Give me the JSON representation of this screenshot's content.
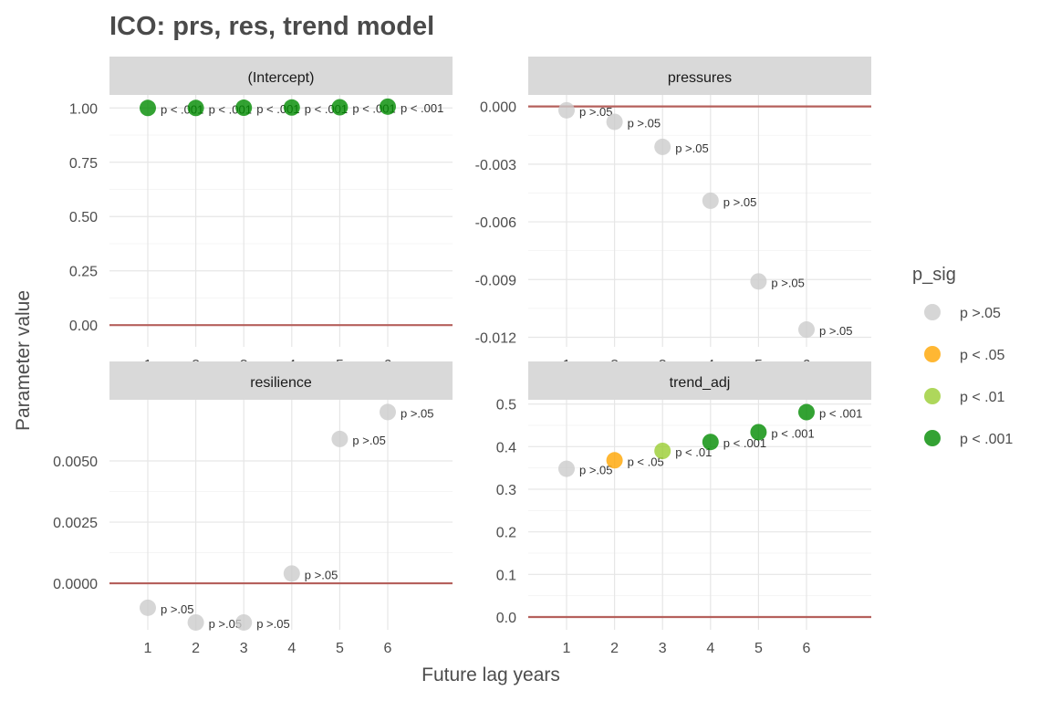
{
  "chart_data": {
    "type": "scatter",
    "title": "ICO: prs, res, trend model",
    "xlabel": "Future lag years",
    "ylabel": "Parameter value",
    "x_ticks": [
      "1",
      "2",
      "3",
      "4",
      "5",
      "6"
    ],
    "legend": {
      "title": "p_sig",
      "placement": "right",
      "items": [
        {
          "label": "p >.05",
          "color": "#cccccc"
        },
        {
          "label": "p < .05",
          "color": "#ffa500"
        },
        {
          "label": "p < .01",
          "color": "#9acd32"
        },
        {
          "label": "p < .001",
          "color": "#008b00"
        }
      ]
    },
    "reference_line": {
      "y": 0,
      "color": "#b5605c"
    },
    "grid": true,
    "panels": [
      {
        "name": "(Intercept)",
        "ylim": [
          -0.1,
          1.06
        ],
        "y_ticks": [
          {
            "v": 0,
            "t": "0.00"
          },
          {
            "v": 0.25,
            "t": "0.25"
          },
          {
            "v": 0.5,
            "t": "0.50"
          },
          {
            "v": 0.75,
            "t": "0.75"
          },
          {
            "v": 1.0,
            "t": "1.00"
          }
        ],
        "points": [
          {
            "x": 1,
            "y": 1.0,
            "sig": "p < .001"
          },
          {
            "x": 2,
            "y": 1.0,
            "sig": "p < .001"
          },
          {
            "x": 3,
            "y": 1.001,
            "sig": "p < .001"
          },
          {
            "x": 4,
            "y": 1.002,
            "sig": "p < .001"
          },
          {
            "x": 5,
            "y": 1.003,
            "sig": "p < .001"
          },
          {
            "x": 6,
            "y": 1.006,
            "sig": "p < .001"
          }
        ]
      },
      {
        "name": "pressures",
        "ylim": [
          -0.0125,
          0.0006
        ],
        "y_ticks": [
          {
            "v": -0.012,
            "t": "-0.012"
          },
          {
            "v": -0.009,
            "t": "-0.009"
          },
          {
            "v": -0.006,
            "t": "-0.006"
          },
          {
            "v": -0.003,
            "t": "-0.003"
          },
          {
            "v": 0,
            "t": "0.000"
          }
        ],
        "points": [
          {
            "x": 1,
            "y": -0.0002,
            "sig": "p >.05"
          },
          {
            "x": 2,
            "y": -0.0008,
            "sig": "p >.05"
          },
          {
            "x": 3,
            "y": -0.0021,
            "sig": "p >.05"
          },
          {
            "x": 4,
            "y": -0.0049,
            "sig": "p >.05"
          },
          {
            "x": 5,
            "y": -0.0091,
            "sig": "p >.05"
          },
          {
            "x": 6,
            "y": -0.0116,
            "sig": "p >.05"
          }
        ]
      },
      {
        "name": "resilience",
        "ylim": [
          -0.0019,
          0.0075
        ],
        "y_ticks": [
          {
            "v": 0,
            "t": "0.0000"
          },
          {
            "v": 0.0025,
            "t": "0.0025"
          },
          {
            "v": 0.005,
            "t": "0.0050"
          }
        ],
        "points": [
          {
            "x": 1,
            "y": -0.001,
            "sig": "p >.05"
          },
          {
            "x": 2,
            "y": -0.0016,
            "sig": "p >.05"
          },
          {
            "x": 3,
            "y": -0.0016,
            "sig": "p >.05"
          },
          {
            "x": 4,
            "y": 0.0004,
            "sig": "p >.05"
          },
          {
            "x": 5,
            "y": 0.0059,
            "sig": "p >.05"
          },
          {
            "x": 6,
            "y": 0.007,
            "sig": "p >.05"
          }
        ]
      },
      {
        "name": "trend_adj",
        "ylim": [
          -0.03,
          0.51
        ],
        "y_ticks": [
          {
            "v": 0,
            "t": "0.0"
          },
          {
            "v": 0.1,
            "t": "0.1"
          },
          {
            "v": 0.2,
            "t": "0.2"
          },
          {
            "v": 0.3,
            "t": "0.3"
          },
          {
            "v": 0.4,
            "t": "0.4"
          },
          {
            "v": 0.5,
            "t": "0.5"
          }
        ],
        "points": [
          {
            "x": 1,
            "y": 0.348,
            "sig": "p >.05"
          },
          {
            "x": 2,
            "y": 0.368,
            "sig": "p < .05"
          },
          {
            "x": 3,
            "y": 0.39,
            "sig": "p < .01"
          },
          {
            "x": 4,
            "y": 0.411,
            "sig": "p < .001"
          },
          {
            "x": 5,
            "y": 0.434,
            "sig": "p < .001"
          },
          {
            "x": 6,
            "y": 0.481,
            "sig": "p < .001"
          }
        ]
      }
    ]
  }
}
